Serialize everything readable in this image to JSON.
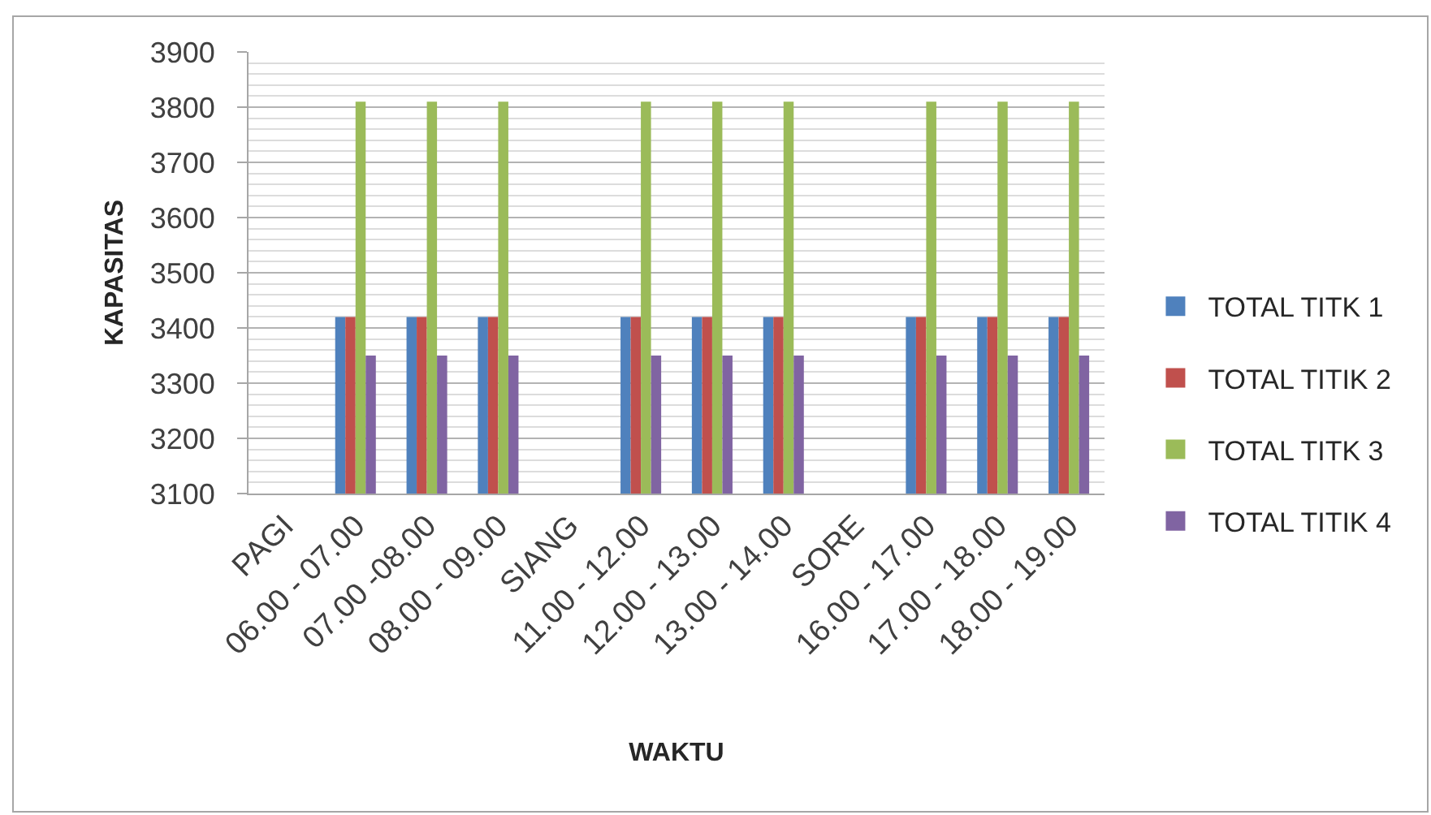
{
  "chart_data": {
    "type": "bar",
    "categories": [
      "PAGI",
      "06.00 - 07.00",
      "07.00 -08.00",
      "08.00 - 09.00",
      "SIANG",
      "11.00 - 12.00",
      "12.00 - 13.00",
      "13.00 - 14.00",
      "SORE",
      "16.00 - 17.00",
      "17.00 - 18.00",
      "18.00 - 19.00"
    ],
    "series": [
      {
        "name": "TOTAL TITK 1",
        "color": "#4f81bd",
        "values": [
          null,
          3420,
          3420,
          3420,
          null,
          3420,
          3420,
          3420,
          null,
          3420,
          3420,
          3420
        ]
      },
      {
        "name": "TOTAL TITIK 2",
        "color": "#c0504d",
        "values": [
          null,
          3420,
          3420,
          3420,
          null,
          3420,
          3420,
          3420,
          null,
          3420,
          3420,
          3420
        ]
      },
      {
        "name": "TOTAL TITK 3",
        "color": "#9bbb59",
        "values": [
          null,
          3810,
          3810,
          3810,
          null,
          3810,
          3810,
          3810,
          null,
          3810,
          3810,
          3810
        ]
      },
      {
        "name": "TOTAL TITIK 4",
        "color": "#8064a2",
        "values": [
          null,
          3350,
          3350,
          3350,
          null,
          3350,
          3350,
          3350,
          null,
          3350,
          3350,
          3350
        ]
      }
    ],
    "xlabel": "WAKTU",
    "ylabel": "KAPASITAS",
    "ylim": [
      3100,
      3900
    ],
    "yticks": [
      3100,
      {
        "value": 3120,
        "label": null
      },
      {
        "value": 3140,
        "label": null
      },
      {
        "value": 3160,
        "label": null
      },
      {
        "value": 3180,
        "label": null
      },
      3200,
      {
        "value": 3220,
        "label": null
      },
      {
        "value": 3240,
        "label": null
      },
      {
        "value": 3260,
        "label": null
      },
      {
        "value": 3280,
        "label": null
      },
      3300,
      {
        "value": 3320,
        "label": null
      },
      {
        "value": 3340,
        "label": null
      },
      {
        "value": 3360,
        "label": null
      },
      {
        "value": 3380,
        "label": null
      },
      3400,
      {
        "value": 3420,
        "label": null
      },
      {
        "value": 3440,
        "label": null
      },
      {
        "value": 3460,
        "label": null
      },
      {
        "value": 3480,
        "label": null
      },
      3500,
      {
        "value": 3520,
        "label": null
      },
      {
        "value": 3540,
        "label": null
      },
      {
        "value": 3560,
        "label": null
      },
      {
        "value": 3580,
        "label": null
      },
      3600,
      {
        "value": 3620,
        "label": null
      },
      {
        "value": 3640,
        "label": null
      },
      {
        "value": 3660,
        "label": null
      },
      {
        "value": 3680,
        "label": null
      },
      3700,
      {
        "value": 3720,
        "label": null
      },
      {
        "value": 3740,
        "label": null
      },
      {
        "value": 3760,
        "label": null
      },
      {
        "value": 3780,
        "label": null
      },
      3800,
      {
        "value": 3820,
        "label": null
      },
      {
        "value": 3840,
        "label": null
      },
      {
        "value": 3860,
        "label": null
      },
      {
        "value": 3880,
        "label": null
      },
      3900
    ],
    "grid": "y",
    "legend": "right"
  }
}
